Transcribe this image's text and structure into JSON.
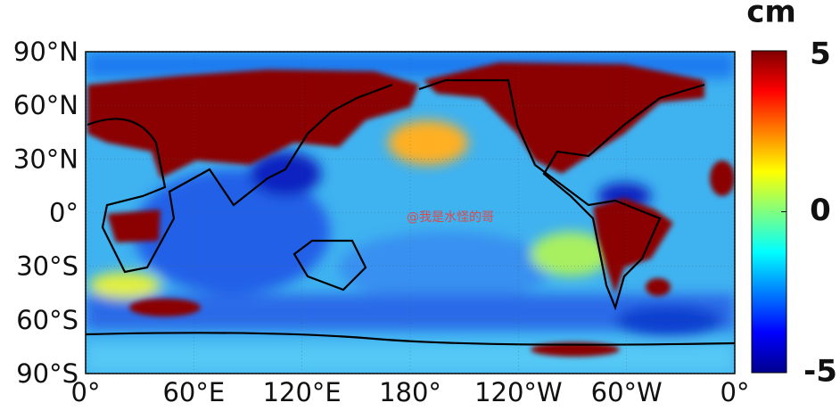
{
  "map": {
    "unit": "cm",
    "watermark": "@我是水怪的哥",
    "lonlim": [
      0,
      360
    ],
    "latlim": [
      -90,
      90
    ],
    "lat_ticks": [
      {
        "value": 90,
        "label": "90°N"
      },
      {
        "value": 60,
        "label": "60°N"
      },
      {
        "value": 30,
        "label": "30°N"
      },
      {
        "value": 0,
        "label": "0°"
      },
      {
        "value": -30,
        "label": "30°S"
      },
      {
        "value": -60,
        "label": "60°S"
      },
      {
        "value": -90,
        "label": "90°S"
      }
    ],
    "lon_ticks": [
      {
        "value": 0,
        "label": "0°"
      },
      {
        "value": 60,
        "label": "60°E"
      },
      {
        "value": 120,
        "label": "120°E"
      },
      {
        "value": 180,
        "label": "180°"
      },
      {
        "value": 240,
        "label": "120°W"
      },
      {
        "value": 300,
        "label": "60°W"
      },
      {
        "value": 360,
        "label": "0°"
      }
    ],
    "grid": true,
    "colorbar": {
      "lim": [
        -5,
        5
      ],
      "ticks": [
        5,
        0,
        -5
      ]
    }
  }
}
